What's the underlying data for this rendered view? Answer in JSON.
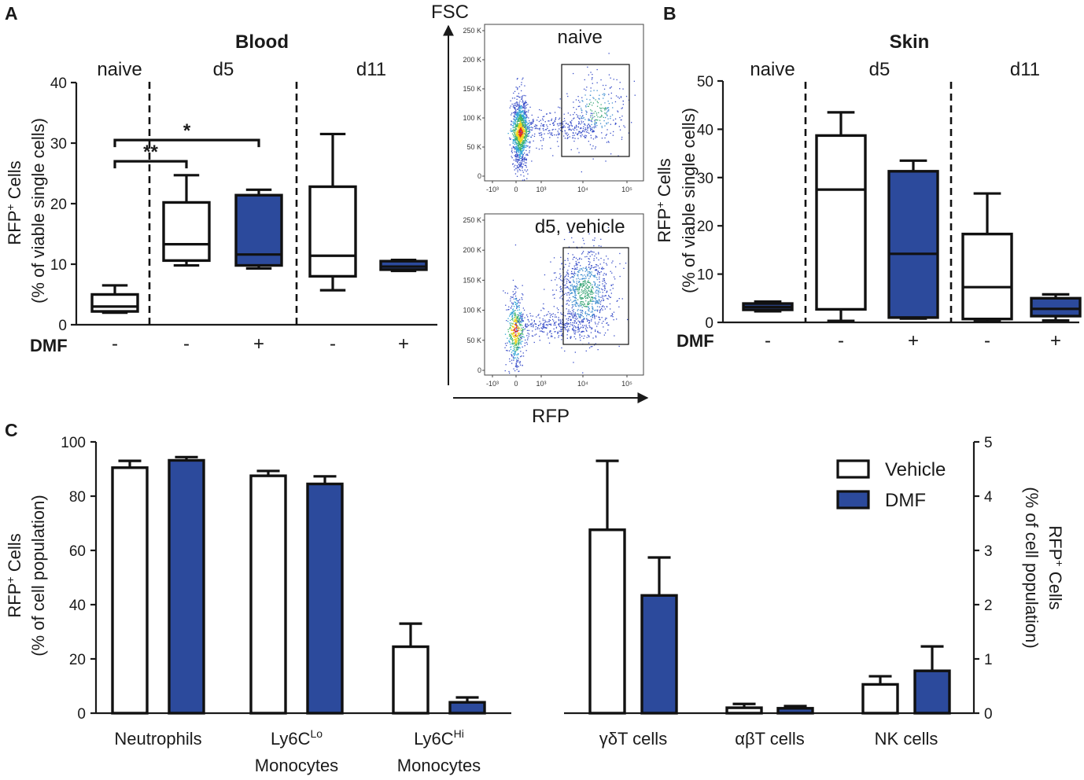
{
  "colors": {
    "dmf": "#2c4a9c",
    "vehicle": "#ffffff",
    "ink": "#111111"
  },
  "panel_labels": [
    "A",
    "B",
    "C"
  ],
  "chart_data": [
    {
      "id": "blood",
      "type": "box",
      "title": "Blood",
      "ylabel_main": "RFP",
      "ylabel_sup": "+",
      "ylabel_suffix": " Cells",
      "ylabel2": "(% of viable single cells)",
      "ylim": [
        0,
        40
      ],
      "yticks": [
        "0",
        "10",
        "20",
        "30",
        "40"
      ],
      "row_label": "DMF",
      "groups": [
        "naive",
        "d5",
        "d11"
      ],
      "boxes": [
        {
          "group": "naive",
          "dmf": "-",
          "min": 2.0,
          "q1": 2.2,
          "median": 3.0,
          "q3": 5.0,
          "max": 6.5,
          "fill": "vehicle"
        },
        {
          "group": "d5",
          "dmf": "-",
          "min": 9.8,
          "q1": 10.6,
          "median": 13.3,
          "q3": 20.2,
          "max": 24.7,
          "fill": "vehicle"
        },
        {
          "group": "d5",
          "dmf": "+",
          "min": 9.3,
          "q1": 9.8,
          "median": 11.6,
          "q3": 21.4,
          "max": 22.3,
          "fill": "dmf"
        },
        {
          "group": "d11",
          "dmf": "-",
          "min": 5.7,
          "q1": 8.0,
          "median": 11.4,
          "q3": 22.8,
          "max": 31.5,
          "fill": "vehicle"
        },
        {
          "group": "d11",
          "dmf": "+",
          "min": 8.9,
          "q1": 9.1,
          "median": 9.6,
          "q3": 10.5,
          "max": 10.7,
          "fill": "dmf"
        }
      ],
      "significance": [
        {
          "from": 0,
          "to": 1,
          "label": "**",
          "level": 27
        },
        {
          "from": 0,
          "to": 2,
          "label": "*",
          "level": 30.5
        }
      ]
    },
    {
      "id": "skin",
      "type": "box",
      "title": "Skin",
      "ylabel_main": "RFP",
      "ylabel_sup": "+",
      "ylabel_suffix": " Cells",
      "ylabel2": "(% of viable single cells)",
      "ylim": [
        0,
        50
      ],
      "yticks": [
        "0",
        "10",
        "20",
        "30",
        "40",
        "50"
      ],
      "row_label": "DMF",
      "groups": [
        "naive",
        "d5",
        "d11"
      ],
      "boxes": [
        {
          "group": "naive",
          "dmf": "-",
          "min": 2.3,
          "q1": 2.6,
          "median": 3.2,
          "q3": 3.9,
          "max": 4.3,
          "fill": "dmf"
        },
        {
          "group": "d5",
          "dmf": "-",
          "min": 0.3,
          "q1": 2.7,
          "median": 27.5,
          "q3": 38.7,
          "max": 43.5,
          "fill": "vehicle"
        },
        {
          "group": "d5",
          "dmf": "+",
          "min": 0.8,
          "q1": 1.0,
          "median": 14.2,
          "q3": 31.3,
          "max": 33.5,
          "fill": "dmf"
        },
        {
          "group": "d11",
          "dmf": "-",
          "min": 0.2,
          "q1": 0.7,
          "median": 7.3,
          "q3": 18.3,
          "max": 26.7,
          "fill": "vehicle"
        },
        {
          "group": "d11",
          "dmf": "+",
          "min": 0.4,
          "q1": 1.3,
          "median": 2.8,
          "q3": 5.0,
          "max": 5.8,
          "fill": "dmf"
        }
      ]
    },
    {
      "id": "flow",
      "type": "scatter",
      "xlabel": "RFP",
      "ylabel": "FSC",
      "plots": [
        {
          "title": "naive",
          "gate_fraction": 0.15
        },
        {
          "title": "d5, vehicle",
          "gate_fraction": 0.55
        }
      ],
      "yticks": [
        "250 K",
        "200 K",
        "150 K",
        "100 K",
        "50 K",
        "0"
      ],
      "xticks": [
        "-10³",
        "0",
        "10³",
        "10⁴",
        "10⁵"
      ]
    },
    {
      "id": "populations",
      "type": "bar",
      "ylabel_main": "RFP",
      "ylabel_sup": "+",
      "ylabel_suffix": " Cells",
      "ylabel2": "(% of cell population)",
      "left": {
        "ylim": [
          0,
          100
        ],
        "yticks": [
          "0",
          "20",
          "40",
          "60",
          "80",
          "100"
        ],
        "categories": [
          {
            "line1": "Neutrophils",
            "line2": ""
          },
          {
            "line1": "Ly6C",
            "sup": "Lo",
            "line2": "Monocytes"
          },
          {
            "line1": "Ly6C",
            "sup": "Hi",
            "line2": "Monocytes"
          }
        ],
        "series": [
          {
            "name": "Vehicle",
            "values": [
              90.5,
              87.5,
              24.5
            ],
            "errors": [
              2.5,
              1.8,
              8.5
            ]
          },
          {
            "name": "DMF",
            "values": [
              93.2,
              84.5,
              4.0
            ],
            "errors": [
              1.2,
              2.8,
              1.8
            ]
          }
        ]
      },
      "right": {
        "ylim": [
          0,
          5
        ],
        "yticks": [
          "0",
          "1",
          "2",
          "3",
          "4",
          "5"
        ],
        "categories": [
          {
            "line1": "γδT cells",
            "line2": ""
          },
          {
            "line1": "αβT cells",
            "line2": ""
          },
          {
            "line1": "NK cells",
            "line2": ""
          }
        ],
        "series": [
          {
            "name": "Vehicle",
            "values": [
              3.38,
              0.1,
              0.53
            ],
            "errors": [
              1.27,
              0.07,
              0.15
            ]
          },
          {
            "name": "DMF",
            "values": [
              2.17,
              0.09,
              0.78
            ],
            "errors": [
              0.7,
              0.04,
              0.45
            ]
          }
        ]
      },
      "legend": [
        {
          "label": "Vehicle",
          "fill": "vehicle"
        },
        {
          "label": "DMF",
          "fill": "dmf"
        }
      ]
    }
  ]
}
